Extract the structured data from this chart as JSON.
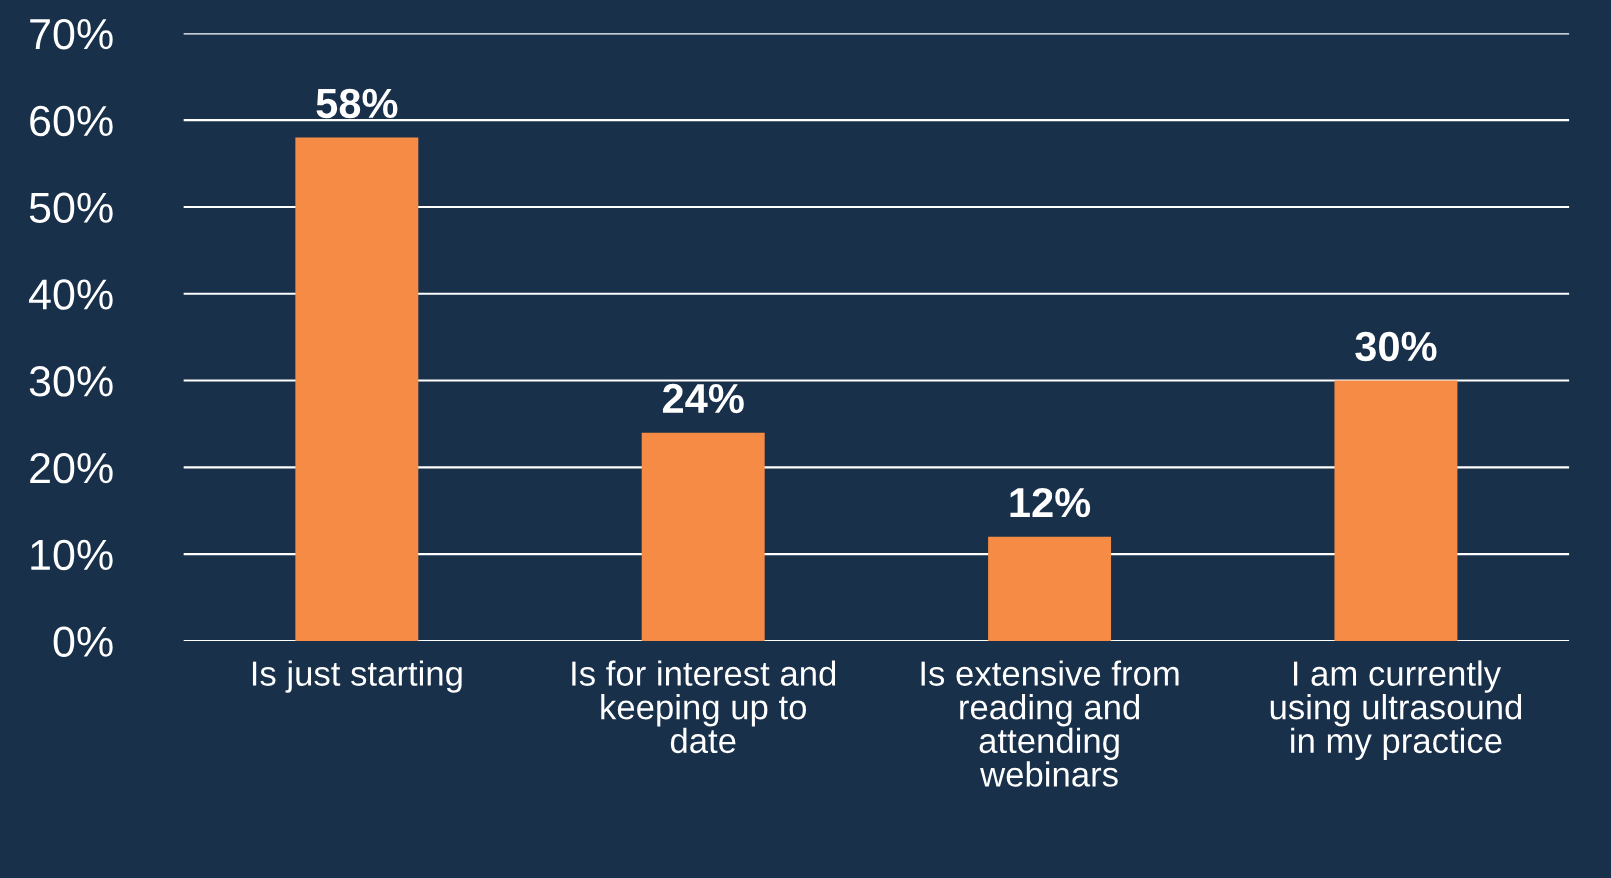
{
  "chart_data": {
    "type": "bar",
    "categories": [
      "Is just starting",
      "Is for interest and\nkeeping up to\ndate",
      "Is extensive from\nreading and\nattending\nwebinars",
      "I am currently\nusing ultrasound\nin my practice"
    ],
    "values": [
      58,
      24,
      12,
      30
    ],
    "value_labels": [
      "58%",
      "24%",
      "12%",
      "30%"
    ],
    "color": "#f58b45",
    "ylim": [
      0,
      70
    ],
    "yticks": [
      {
        "value": 0,
        "label": "0%"
      },
      {
        "value": 10,
        "label": "10%"
      },
      {
        "value": 20,
        "label": "20%"
      },
      {
        "value": 30,
        "label": "30%"
      },
      {
        "value": 40,
        "label": "40%"
      },
      {
        "value": 50,
        "label": "50%"
      },
      {
        "value": 60,
        "label": "60%"
      },
      {
        "value": 70,
        "label": "70%"
      }
    ],
    "grid": "y",
    "legend": false
  }
}
